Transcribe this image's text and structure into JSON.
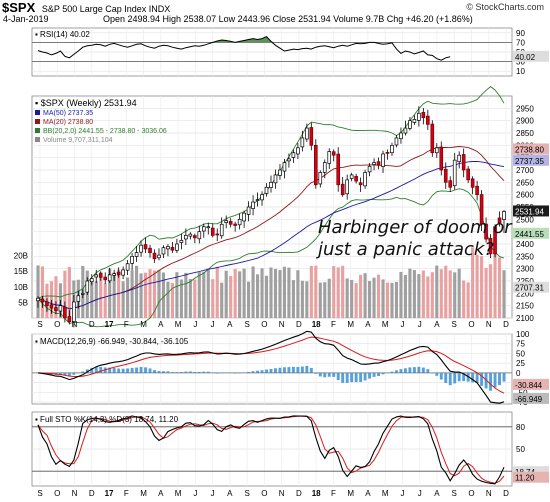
{
  "header": {
    "symbol": "$SPX",
    "description": "S&P 500 Large Cap Index INDX",
    "date": "4-Jan-2019",
    "ohlc": "Open 2498.94  High 2538.07  Low 2443.96  Close 2531.94  Volume 9.7B  Chg +46.20 (+1.86%)",
    "copyright": "© StockCharts.com"
  },
  "chart_data": [
    {
      "type": "line",
      "panel": "rsi",
      "legend": "RSI(14) 40.02",
      "ylim": [
        0,
        100
      ],
      "ticks": [
        10,
        30,
        50,
        70,
        90
      ],
      "ref_lines": [
        30,
        70
      ],
      "right_labels": [
        "40.02"
      ],
      "series": [
        {
          "color": "#000000",
          "values": [
            53,
            50,
            48,
            44,
            47,
            52,
            41,
            38,
            45,
            52,
            60,
            63,
            64,
            66,
            65,
            62,
            66,
            68,
            65,
            62,
            60,
            63,
            66,
            67,
            63,
            60,
            58,
            62,
            64,
            63,
            60,
            58,
            56,
            59,
            61,
            63,
            62,
            64,
            67,
            70,
            73,
            75,
            74,
            72,
            70,
            72,
            74,
            76,
            78,
            76,
            78,
            82,
            72,
            64,
            58,
            52,
            54,
            56,
            55,
            57,
            58,
            56,
            60,
            62,
            63,
            61,
            59,
            62,
            64,
            62,
            65,
            68,
            67,
            68,
            70,
            70,
            68,
            66,
            67,
            69,
            56,
            47,
            52,
            50,
            46,
            49,
            52,
            44,
            43,
            36,
            33,
            38,
            40
          ]
        }
      ]
    },
    {
      "type": "candlestick",
      "panel": "price",
      "title": "$SPX (Weekly) 2531.94",
      "ylim": [
        2100,
        3000
      ],
      "ticks": [
        2100,
        2150,
        2200,
        2250,
        2300,
        2350,
        2400,
        2450,
        2500,
        2550,
        2600,
        2650,
        2700,
        2750,
        2800,
        2850,
        2900,
        2950
      ],
      "right_labels": [
        "2531.94",
        "2737.35",
        "2441.55",
        "2738.80",
        "2707.31"
      ],
      "x_labels": [
        "S",
        "O",
        "N",
        "D",
        "17",
        "F",
        "M",
        "A",
        "M",
        "J",
        "J",
        "A",
        "S",
        "O",
        "N",
        "D",
        "18",
        "F",
        "M",
        "A",
        "M",
        "J",
        "J",
        "A",
        "S",
        "O",
        "N",
        "D"
      ],
      "legend": [
        {
          "name": "MA(50) 2737.35",
          "color": "#1a1aa0"
        },
        {
          "name": "MA(20) 2738.80",
          "color": "#8b1a1a"
        },
        {
          "name": "BB(20,2.0) 2441.55 - 2738.80 - 3036.06",
          "color": "#2e7d2e"
        },
        {
          "name": "Volume 9,707,311,104",
          "color": "#888888"
        }
      ],
      "annotation": [
        "Harbinger of doom or",
        "just a panic attack?"
      ],
      "close": [
        2180,
        2165,
        2150,
        2140,
        2130,
        2150,
        2100,
        2085,
        2165,
        2190,
        2200,
        2250,
        2260,
        2275,
        2265,
        2255,
        2275,
        2280,
        2275,
        2295,
        2320,
        2350,
        2365,
        2395,
        2380,
        2365,
        2340,
        2355,
        2385,
        2390,
        2375,
        2400,
        2415,
        2435,
        2440,
        2425,
        2450,
        2470,
        2470,
        2435,
        2440,
        2480,
        2495,
        2480,
        2475,
        2500,
        2525,
        2550,
        2570,
        2580,
        2600,
        2630,
        2650,
        2680,
        2700,
        2730,
        2745,
        2770,
        2790,
        2830,
        2870,
        2800,
        2640,
        2690,
        2730,
        2775,
        2760,
        2640,
        2600,
        2660,
        2680,
        2655,
        2640,
        2690,
        2715,
        2730,
        2720,
        2765,
        2770,
        2800,
        2830,
        2850,
        2870,
        2900,
        2905,
        2930,
        2912,
        2885,
        2770,
        2790,
        2700,
        2650,
        2630,
        2740,
        2760,
        2700,
        2660,
        2630,
        2600,
        2480,
        2420,
        2360,
        2500,
        2486,
        2532
      ],
      "volume_ylim": [
        0,
        25
      ],
      "volume_ticks": [
        5,
        10,
        15,
        20
      ],
      "volume_tick_labels": [
        "5B",
        "10B",
        "15B",
        "20B"
      ]
    },
    {
      "type": "line",
      "panel": "macd",
      "legend": "MACD(12,26,9) -66.949, -30.844, -36.105",
      "ylim": [
        -80,
        100
      ],
      "ticks": [
        -75,
        -50,
        -25,
        0,
        25,
        50,
        75,
        100
      ],
      "right_labels": [
        "-30.844",
        "-66.949"
      ],
      "series": [
        {
          "name": "MACD",
          "color": "#000000"
        },
        {
          "name": "Signal",
          "color": "#d81b1b"
        }
      ]
    },
    {
      "type": "line",
      "panel": "sto",
      "legend": "Full STO %K(14,3) %D(3) 18.74, 11.20",
      "ylim": [
        0,
        100
      ],
      "ticks": [
        20,
        50,
        80
      ],
      "ref_lines": [
        20,
        80
      ],
      "right_labels": [
        "18.74",
        "11.20"
      ],
      "x_labels": [
        "S",
        "O",
        "N",
        "D",
        "17",
        "F",
        "M",
        "A",
        "M",
        "J",
        "J",
        "A",
        "S",
        "O",
        "N",
        "D",
        "18",
        "F",
        "M",
        "A",
        "M",
        "J",
        "J",
        "A",
        "S",
        "O",
        "N",
        "D"
      ],
      "series": [
        {
          "name": "%K",
          "color": "#000000"
        },
        {
          "name": "%D",
          "color": "#d81b1b"
        }
      ]
    }
  ]
}
